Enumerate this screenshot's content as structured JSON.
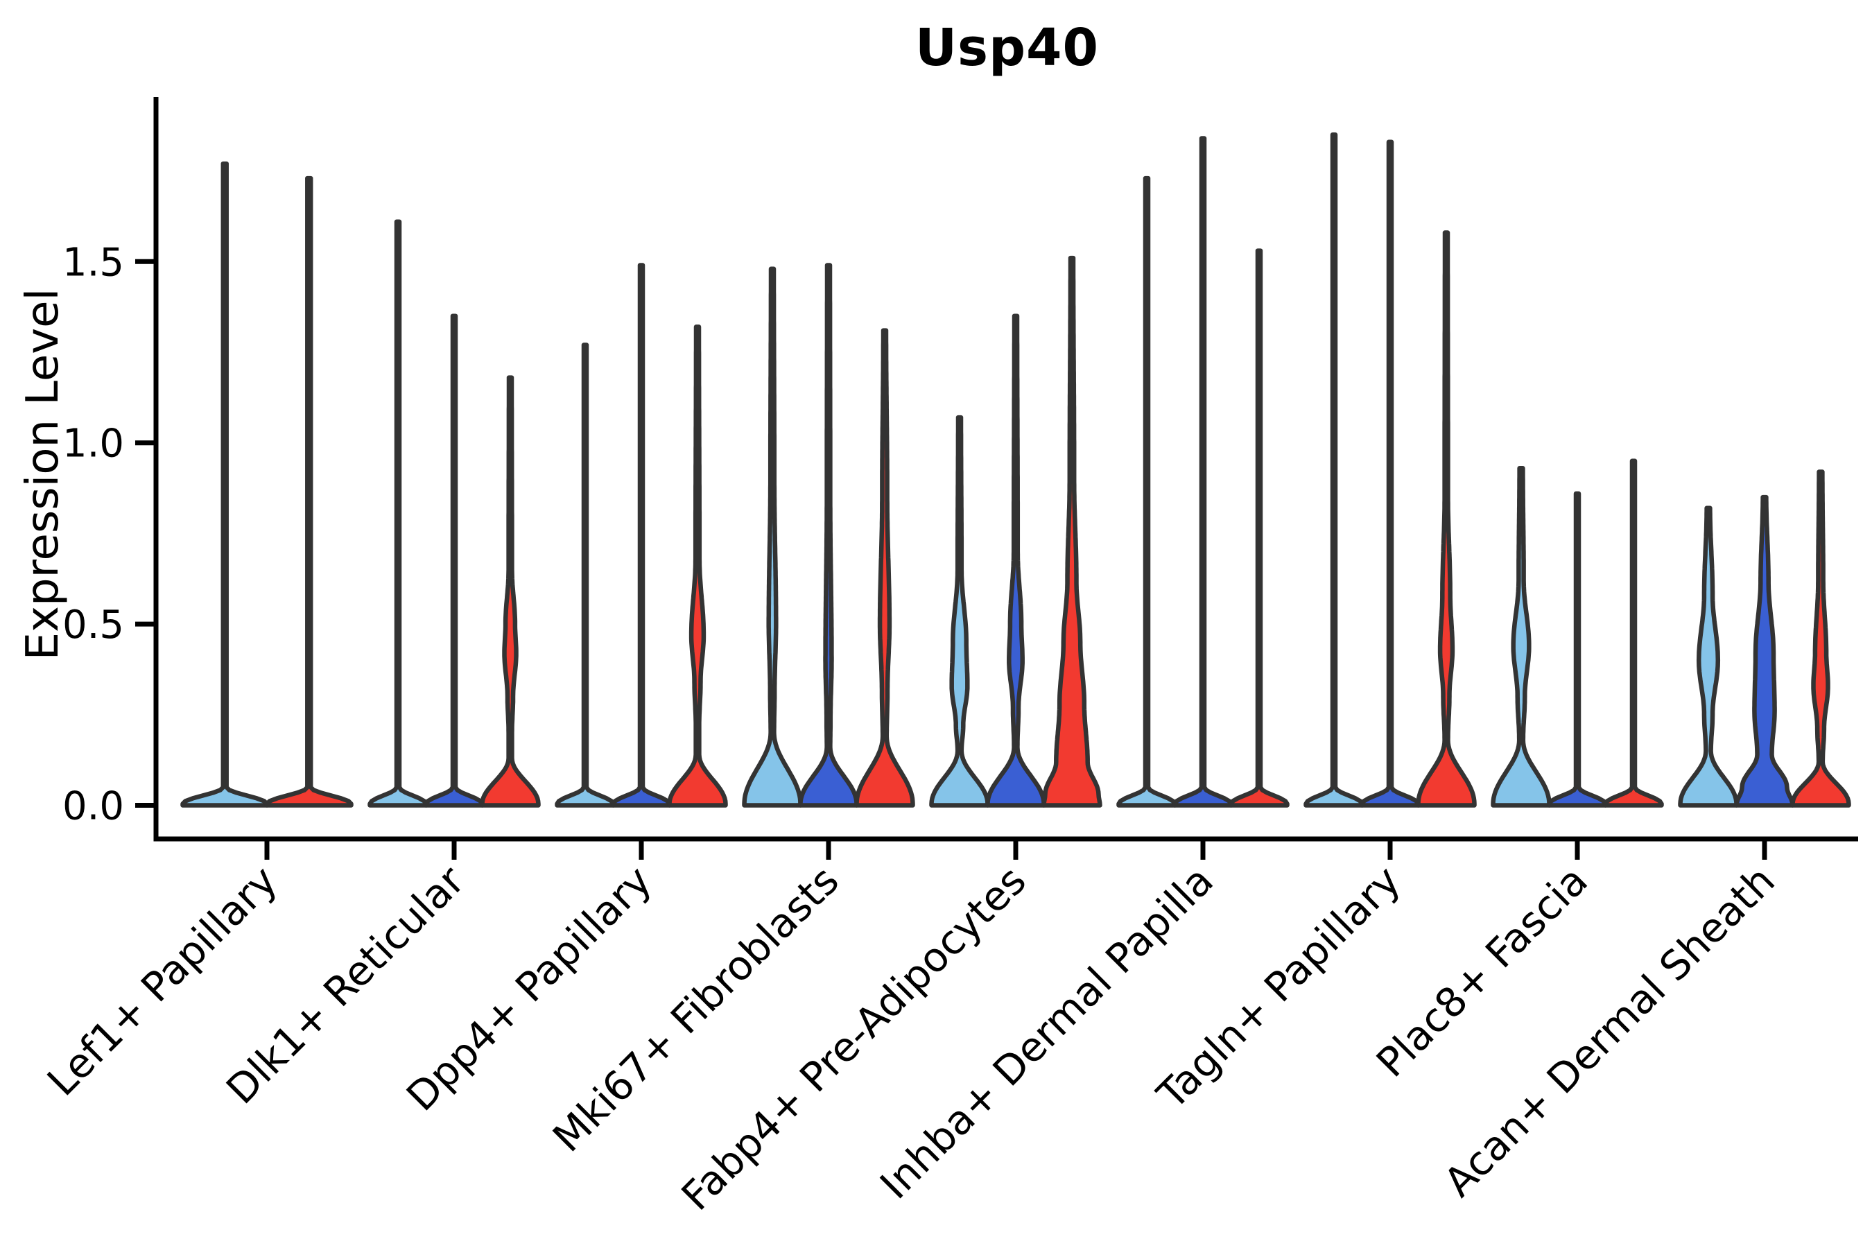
{
  "title": "Usp40",
  "chart_data": {
    "type": "violin",
    "title": "Usp40",
    "ylabel": "Expression Level",
    "ylim": [
      -0.09,
      1.95
    ],
    "yticks": [
      0,
      0.5,
      1.0,
      1.5
    ],
    "ytick_labels": [
      "0.0",
      "0.5",
      "1.0",
      "1.5"
    ],
    "legend": "none",
    "grid": "off",
    "x_label_angle": 45,
    "outline": "#333333",
    "split_colors": {
      "light_blue": "#85C4E9",
      "dark_blue": "#3A5FD3",
      "red": "#F23A30"
    },
    "categories": [
      "Lef1+ Papillary",
      "Dlk1+ Reticular",
      "Dpp4+ Papillary",
      "Mki67+ Fibroblasts",
      "Fabp4+ Pre-Adipocytes",
      "Inhba+ Dermal Papilla",
      "Tagln+ Papillary",
      "Plac8+ Fascia",
      "Acan+ Dermal Sheath"
    ],
    "groups": [
      {
        "label": "Lef1+ Papillary",
        "violins": [
          {
            "split": "light_blue",
            "max": 1.77,
            "shape": [
              [
                1.77,
                0.04
              ],
              [
                0.05,
                0.04
              ],
              [
                0.004,
                1
              ],
              [
                0,
                1
              ]
            ]
          },
          {
            "split": "red",
            "max": 1.73,
            "shape": [
              [
                1.73,
                0.04
              ],
              [
                0.05,
                0.04
              ],
              [
                0.004,
                1
              ],
              [
                0,
                1
              ]
            ]
          }
        ]
      },
      {
        "label": "Dlk1+ Reticular",
        "violins": [
          {
            "split": "light_blue",
            "max": 1.61,
            "shape": [
              [
                1.61,
                0.05
              ],
              [
                0.05,
                0.05
              ],
              [
                0.004,
                1
              ],
              [
                0,
                1
              ]
            ]
          },
          {
            "split": "dark_blue",
            "max": 1.35,
            "shape": [
              [
                1.35,
                0.05
              ],
              [
                0.05,
                0.05
              ],
              [
                0.004,
                1
              ],
              [
                0,
                1
              ]
            ]
          },
          {
            "split": "red",
            "max": 1.18,
            "shape": [
              [
                1.18,
                0.05
              ],
              [
                0.65,
                0.06
              ],
              [
                0.5,
                0.17
              ],
              [
                0.42,
                0.21
              ],
              [
                0.3,
                0.1
              ],
              [
                0.2,
                0.06
              ],
              [
                0.13,
                0.06
              ],
              [
                0.004,
                1
              ],
              [
                0,
                1
              ]
            ]
          }
        ]
      },
      {
        "label": "Dpp4+ Papillary",
        "violins": [
          {
            "split": "light_blue",
            "max": 1.27,
            "shape": [
              [
                1.27,
                0.05
              ],
              [
                0.05,
                0.05
              ],
              [
                0.004,
                1
              ],
              [
                0,
                1
              ]
            ]
          },
          {
            "split": "dark_blue",
            "max": 1.49,
            "shape": [
              [
                1.49,
                0.05
              ],
              [
                0.05,
                0.05
              ],
              [
                0.004,
                1
              ],
              [
                0,
                1
              ]
            ]
          },
          {
            "split": "red",
            "max": 1.32,
            "shape": [
              [
                1.32,
                0.05
              ],
              [
                0.68,
                0.07
              ],
              [
                0.47,
                0.22
              ],
              [
                0.34,
                0.11
              ],
              [
                0.22,
                0.06
              ],
              [
                0.14,
                0.06
              ],
              [
                0.004,
                1
              ],
              [
                0,
                1
              ]
            ]
          }
        ]
      },
      {
        "label": "Mki67+ Fibroblasts",
        "violins": [
          {
            "split": "light_blue",
            "max": 1.48,
            "shape": [
              [
                1.48,
                0.05
              ],
              [
                0.9,
                0.07
              ],
              [
                0.5,
                0.13
              ],
              [
                0.32,
                0.08
              ],
              [
                0.2,
                0.06
              ],
              [
                0.004,
                1
              ],
              [
                0,
                1
              ]
            ]
          },
          {
            "split": "dark_blue",
            "max": 1.49,
            "shape": [
              [
                1.49,
                0.05
              ],
              [
                0.85,
                0.06
              ],
              [
                0.4,
                0.11
              ],
              [
                0.24,
                0.07
              ],
              [
                0.16,
                0.06
              ],
              [
                0.004,
                1
              ],
              [
                0,
                1
              ]
            ]
          },
          {
            "split": "red",
            "max": 1.31,
            "shape": [
              [
                1.31,
                0.05
              ],
              [
                0.85,
                0.09
              ],
              [
                0.5,
                0.17
              ],
              [
                0.32,
                0.1
              ],
              [
                0.19,
                0.07
              ],
              [
                0.004,
                1
              ],
              [
                0,
                1
              ]
            ]
          }
        ]
      },
      {
        "label": "Fabp4+ Pre-Adipocytes",
        "violins": [
          {
            "split": "light_blue",
            "max": 1.07,
            "shape": [
              [
                1.07,
                0.05
              ],
              [
                0.65,
                0.07
              ],
              [
                0.45,
                0.24
              ],
              [
                0.33,
                0.28
              ],
              [
                0.22,
                0.13
              ],
              [
                0.15,
                0.07
              ],
              [
                0.004,
                1
              ],
              [
                0,
                1
              ]
            ]
          },
          {
            "split": "dark_blue",
            "max": 1.35,
            "shape": [
              [
                1.35,
                0.05
              ],
              [
                0.7,
                0.07
              ],
              [
                0.5,
                0.2
              ],
              [
                0.4,
                0.24
              ],
              [
                0.27,
                0.1
              ],
              [
                0.16,
                0.06
              ],
              [
                0.004,
                1
              ],
              [
                0,
                1
              ]
            ]
          },
          {
            "split": "red",
            "max": 1.51,
            "shape": [
              [
                1.51,
                0.05
              ],
              [
                0.9,
                0.08
              ],
              [
                0.62,
                0.16
              ],
              [
                0.45,
                0.3
              ],
              [
                0.28,
                0.44
              ],
              [
                0.12,
                0.56
              ],
              [
                0.03,
                0.95
              ],
              [
                0,
                1
              ]
            ]
          }
        ]
      },
      {
        "label": "Inhba+ Dermal Papilla",
        "violins": [
          {
            "split": "light_blue",
            "max": 1.73,
            "shape": [
              [
                1.73,
                0.05
              ],
              [
                0.05,
                0.05
              ],
              [
                0.004,
                1
              ],
              [
                0,
                1
              ]
            ]
          },
          {
            "split": "dark_blue",
            "max": 1.84,
            "shape": [
              [
                1.84,
                0.05
              ],
              [
                0.05,
                0.05
              ],
              [
                0.004,
                1
              ],
              [
                0,
                1
              ]
            ]
          },
          {
            "split": "red",
            "max": 1.53,
            "shape": [
              [
                1.53,
                0.05
              ],
              [
                0.05,
                0.05
              ],
              [
                0.004,
                1
              ],
              [
                0,
                1
              ]
            ]
          }
        ]
      },
      {
        "label": "Tagln+ Papillary",
        "violins": [
          {
            "split": "light_blue",
            "max": 1.85,
            "shape": [
              [
                1.85,
                0.05
              ],
              [
                0.05,
                0.05
              ],
              [
                0.004,
                1
              ],
              [
                0,
                1
              ]
            ]
          },
          {
            "split": "dark_blue",
            "max": 1.83,
            "shape": [
              [
                1.83,
                0.05
              ],
              [
                0.05,
                0.05
              ],
              [
                0.004,
                1
              ],
              [
                0,
                1
              ]
            ]
          },
          {
            "split": "red",
            "max": 1.58,
            "shape": [
              [
                1.58,
                0.05
              ],
              [
                0.85,
                0.06
              ],
              [
                0.58,
                0.14
              ],
              [
                0.43,
                0.22
              ],
              [
                0.3,
                0.11
              ],
              [
                0.18,
                0.06
              ],
              [
                0.004,
                1
              ],
              [
                0,
                1
              ]
            ]
          }
        ]
      },
      {
        "label": "Plac8+ Fascia",
        "violins": [
          {
            "split": "light_blue",
            "max": 0.93,
            "shape": [
              [
                0.93,
                0.06
              ],
              [
                0.62,
                0.09
              ],
              [
                0.44,
                0.28
              ],
              [
                0.3,
                0.13
              ],
              [
                0.18,
                0.07
              ],
              [
                0.004,
                1
              ],
              [
                0,
                1
              ]
            ]
          },
          {
            "split": "dark_blue",
            "max": 0.86,
            "shape": [
              [
                0.86,
                0.05
              ],
              [
                0.05,
                0.05
              ],
              [
                0.004,
                1
              ],
              [
                0,
                1
              ]
            ]
          },
          {
            "split": "red",
            "max": 0.95,
            "shape": [
              [
                0.95,
                0.05
              ],
              [
                0.05,
                0.05
              ],
              [
                0.004,
                1
              ],
              [
                0,
                1
              ]
            ]
          }
        ]
      },
      {
        "label": "Acan+ Dermal Sheath",
        "violins": [
          {
            "split": "light_blue",
            "max": 0.82,
            "shape": [
              [
                0.82,
                0.06
              ],
              [
                0.58,
                0.15
              ],
              [
                0.4,
                0.34
              ],
              [
                0.25,
                0.15
              ],
              [
                0.15,
                0.09
              ],
              [
                0.004,
                1
              ],
              [
                0,
                1
              ]
            ]
          },
          {
            "split": "dark_blue",
            "max": 0.85,
            "shape": [
              [
                0.85,
                0.06
              ],
              [
                0.62,
                0.14
              ],
              [
                0.42,
                0.32
              ],
              [
                0.26,
                0.36
              ],
              [
                0.14,
                0.26
              ],
              [
                0.05,
                0.8
              ],
              [
                0,
                1
              ]
            ]
          },
          {
            "split": "red",
            "max": 0.92,
            "shape": [
              [
                0.92,
                0.06
              ],
              [
                0.62,
                0.09
              ],
              [
                0.42,
                0.2
              ],
              [
                0.33,
                0.26
              ],
              [
                0.21,
                0.12
              ],
              [
                0.12,
                0.07
              ],
              [
                0.004,
                1
              ],
              [
                0,
                1
              ]
            ]
          }
        ]
      }
    ]
  }
}
